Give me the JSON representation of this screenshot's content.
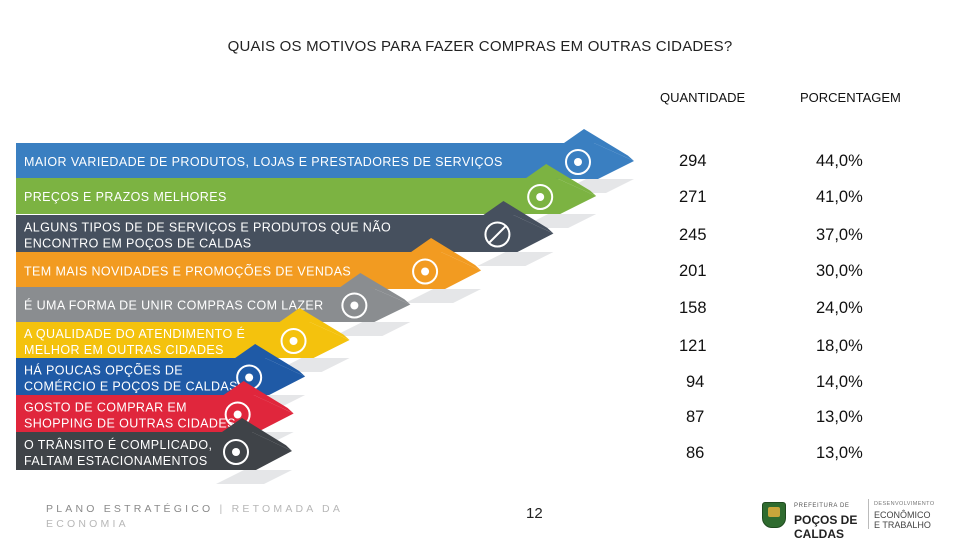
{
  "title": "QUAIS OS MOTIVOS PARA FAZER COMPRAS EM OUTRAS CIDADES?",
  "columns": {
    "quantity": "QUANTIDADE",
    "percentage": "PORCENTAGEM"
  },
  "chart_data": {
    "type": "bar",
    "title": "QUAIS OS MOTIVOS PARA FAZER COMPRAS EM OUTRAS CIDADES?",
    "categories": [
      "MAIOR VARIEDADE DE PRODUTOS, LOJAS E PRESTADORES DE SERVIÇOS",
      "PREÇOS E PRAZOS MELHORES",
      "ALGUNS TIPOS DE DE SERVIÇOS E PRODUTOS QUE NÃO ENCONTRO EM POÇOS DE CALDAS",
      "TEM MAIS NOVIDADES E PROMOÇÕES DE VENDAS",
      "É UMA FORMA DE UNIR COMPRAS COM LAZER",
      "A QUALIDADE DO ATENDIMENTO É MELHOR EM OUTRAS CIDADES",
      "HÁ POUCAS OPÇÕES DE COMÉRCIO E POÇOS DE CALDAS",
      "GOSTO DE COMPRAR EM SHOPPING DE OUTRAS CIDADES",
      "O TRÂNSITO É COMPLICADO, FALTAM ESTACIONAMENTOS"
    ],
    "label_lines": [
      [
        "MAIOR VARIEDADE DE PRODUTOS, LOJAS E PRESTADORES DE SERVIÇOS"
      ],
      [
        "PREÇOS E PRAZOS MELHORES"
      ],
      [
        "ALGUNS TIPOS DE DE SERVIÇOS E PRODUTOS QUE NÃO",
        "ENCONTRO EM POÇOS DE CALDAS"
      ],
      [
        "TEM MAIS NOVIDADES E PROMOÇÕES DE VENDAS"
      ],
      [
        "É UMA FORMA DE UNIR COMPRAS COM LAZER"
      ],
      [
        "A QUALIDADE DO ATENDIMENTO É",
        "MELHOR EM OUTRAS CIDADES"
      ],
      [
        "HÁ POUCAS OPÇÕES DE",
        "COMÉRCIO E POÇOS DE CALDAS"
      ],
      [
        "GOSTO DE COMPRAR EM",
        "SHOPPING DE OUTRAS CIDADES"
      ],
      [
        "O TRÂNSITO É COMPLICADO,",
        "FALTAM ESTACIONAMENTOS"
      ]
    ],
    "series": [
      {
        "name": "QUANTIDADE",
        "values": [
          294,
          271,
          245,
          201,
          158,
          121,
          94,
          87,
          86
        ]
      },
      {
        "name": "PORCENTAGEM",
        "values": [
          44.0,
          41.0,
          37.0,
          30.0,
          24.0,
          18.0,
          14.0,
          13.0,
          13.0
        ]
      }
    ],
    "value_labels": [
      "294",
      "271",
      "245",
      "201",
      "158",
      "121",
      "94",
      "87",
      "86"
    ],
    "percent_labels": [
      "44,0%",
      "41,0%",
      "37,0%",
      "30,0%",
      "24,0%",
      "18,0%",
      "14,0%",
      "13,0%",
      "13,0%"
    ],
    "colors": [
      "#3a7fc1",
      "#7cb342",
      "#46505e",
      "#f29b21",
      "#8a8d90",
      "#f4c20d",
      "#1f5aa6",
      "#e0263c",
      "#3f4348"
    ],
    "icons": [
      "picture-frame-icon",
      "money-bag-icon",
      "prohibited-icon",
      "megaphone-icon",
      "target-icon",
      "speaking-head-icon",
      "cash-register-icon",
      "shopping-bag-icon",
      "car-icon"
    ]
  },
  "footer": {
    "strategic_plan": "PLANO ESTRATÉGICO",
    "separator": "|",
    "resume": "RETOMADA DA ECONOMIA",
    "page_number": "12"
  },
  "logo": {
    "prefeitura": "PREFEITURA DE",
    "city_line1": "POÇOS DE",
    "city_line2": "CALDAS",
    "dept_small": "DESENVOLVIMENTO",
    "dept_line1": "ECONÔMICO",
    "dept_line2": "E TRABALHO"
  }
}
